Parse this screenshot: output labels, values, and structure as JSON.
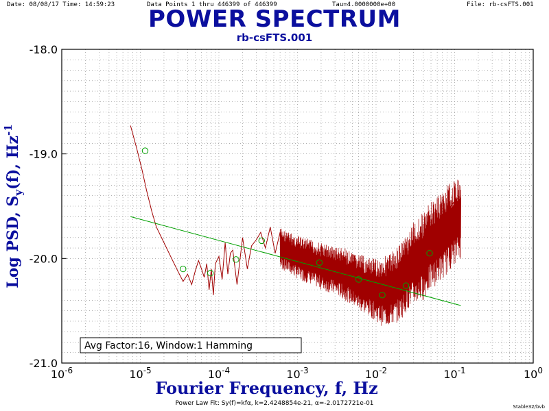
{
  "header": {
    "date": "Date: 08/08/17  Time: 14:59:23",
    "points": "Data Points 1 thru 446399 of 446399",
    "tau": "Tau=4.0000000e+00",
    "file": "File: rb-csFTS.001"
  },
  "footer": "Power Law Fit: Sy(f)=kfα, k=2.4248854e-21, α=-2.0172721e-01",
  "stamp": "Stable32/bvb",
  "colors": {
    "title": "#0b0f9e",
    "psd": "#a00000",
    "fit": "#00a000",
    "markers": "#00a000",
    "grid": "#808080"
  },
  "chart_data": {
    "type": "line",
    "title": "POWER SPECTRUM",
    "subtitle": "rb-csFTS.001",
    "xlabel": "Fourier Frequency, f, Hz",
    "ylabel": {
      "text": "Log PSD, S",
      "sub": "y",
      "mid": "(f), Hz",
      "sup": "-1"
    },
    "xscale": "log",
    "xlim": [
      1e-06,
      1
    ],
    "ylim": [
      -21.0,
      -18.0
    ],
    "x_ticks": [
      {
        "base": "10",
        "exp": "-6"
      },
      {
        "base": "10",
        "exp": "-5"
      },
      {
        "base": "10",
        "exp": "-4"
      },
      {
        "base": "10",
        "exp": "-3"
      },
      {
        "base": "10",
        "exp": "-2"
      },
      {
        "base": "10",
        "exp": "-1"
      },
      {
        "base": "10",
        "exp": "0"
      }
    ],
    "y_ticks": [
      "-18.0",
      "-19.0",
      "-20.0",
      "-21.0"
    ],
    "grid": true,
    "legend_box": "Avg Factor:16, Window:1 Hamming",
    "series": [
      {
        "label": "PSD",
        "x": [
          7.5e-06,
          9e-06,
          1.05e-05,
          1.2e-05,
          1.4e-05,
          1.6e-05,
          2e-05,
          2.5e-05,
          3e-05,
          3.5e-05,
          4e-05,
          4.5e-05,
          5e-05,
          5.5e-05,
          6e-05,
          6.5e-05,
          7e-05,
          7.5e-05,
          8e-05,
          8.5e-05,
          9e-05,
          0.0001,
          0.00011,
          0.00012,
          0.00013,
          0.00014,
          0.00015,
          0.00017,
          0.0002,
          0.00023,
          0.00026,
          0.0003,
          0.00034,
          0.00039,
          0.00045,
          0.00052,
          0.0006,
          0.0007,
          0.0008,
          0.0009,
          0.001,
          0.0012,
          0.0015,
          0.002,
          0.0025,
          0.003,
          0.004,
          0.005,
          0.006,
          0.008,
          0.01,
          0.012,
          0.015,
          0.02,
          0.025,
          0.03,
          0.04,
          0.05,
          0.06,
          0.08,
          0.1,
          0.12
        ],
        "y": [
          -18.73,
          -18.95,
          -19.15,
          -19.35,
          -19.55,
          -19.7,
          -19.85,
          -20.0,
          -20.12,
          -20.22,
          -20.15,
          -20.25,
          -20.12,
          -20.02,
          -20.1,
          -20.18,
          -20.05,
          -20.3,
          -20.1,
          -20.35,
          -20.05,
          -19.98,
          -20.2,
          -19.85,
          -20.15,
          -19.95,
          -19.92,
          -20.25,
          -19.8,
          -20.1,
          -19.88,
          -19.82,
          -19.75,
          -19.9,
          -19.7,
          -19.95,
          -19.75,
          -19.9,
          -19.95,
          -20.0,
          -20.05,
          -20.08,
          -20.1,
          -20.15,
          -20.12,
          -20.18,
          -20.2,
          -20.25,
          -20.22,
          -20.28,
          -20.3,
          -20.32,
          -20.28,
          -20.22,
          -20.1,
          -20.0,
          -19.85,
          -19.75,
          -19.65,
          -19.55,
          -19.45,
          -19.4
        ]
      },
      {
        "label": "Power Law Fit",
        "x": [
          7.5e-06,
          0.12
        ],
        "y": [
          -19.6,
          -20.45
        ]
      }
    ],
    "noise_band": {
      "x": [
        0.0006,
        0.0008,
        0.001,
        0.0015,
        0.002,
        0.003,
        0.004,
        0.005,
        0.006,
        0.008,
        0.01,
        0.012,
        0.015,
        0.02,
        0.025,
        0.03,
        0.04,
        0.05,
        0.06,
        0.08,
        0.1,
        0.12
      ],
      "lo": [
        -20.1,
        -20.15,
        -20.2,
        -20.25,
        -20.3,
        -20.35,
        -20.4,
        -20.45,
        -20.5,
        -20.55,
        -20.6,
        -20.65,
        -20.65,
        -20.6,
        -20.5,
        -20.45,
        -20.4,
        -20.3,
        -20.25,
        -20.15,
        -20.05,
        -20.0
      ],
      "hi": [
        -19.7,
        -19.75,
        -19.78,
        -19.82,
        -19.85,
        -19.88,
        -19.9,
        -19.95,
        -19.95,
        -20.0,
        -20.0,
        -19.98,
        -19.95,
        -19.85,
        -19.75,
        -19.65,
        -19.55,
        -19.45,
        -19.4,
        -19.3,
        -19.25,
        -19.2
      ]
    },
    "markers": {
      "x": [
        1.15e-05,
        3.5e-05,
        7.8e-05,
        0.000165,
        0.00035,
        0.0019,
        0.006,
        0.012,
        0.024,
        0.048
      ],
      "y": [
        -18.97,
        -20.1,
        -20.14,
        -20.01,
        -19.83,
        -20.04,
        -20.2,
        -20.35,
        -20.26,
        -19.95
      ]
    }
  }
}
